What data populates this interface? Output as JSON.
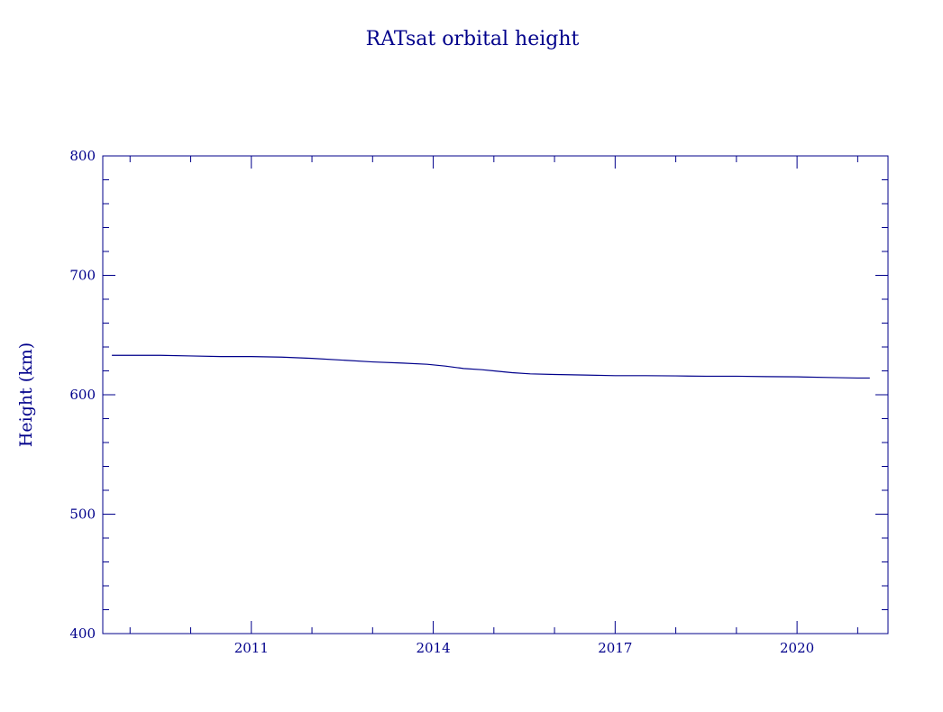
{
  "chart_data": {
    "type": "line",
    "title": "RATsat orbital height",
    "xlabel": "",
    "ylabel": "Height (km)",
    "x_ticks": [
      2011,
      2014,
      2017,
      2020
    ],
    "y_ticks": [
      400,
      500,
      600,
      700,
      800
    ],
    "xlim": [
      2008.55,
      2021.5
    ],
    "ylim": [
      400,
      800
    ],
    "grid": false,
    "legend": "none",
    "color": "#00008b",
    "series": [
      {
        "x": [
          2008.7,
          2009.5,
          2010.0,
          2010.5,
          2011.0,
          2011.5,
          2012.0,
          2012.5,
          2013.0,
          2013.5,
          2013.9,
          2014.2,
          2014.5,
          2014.8,
          2015.0,
          2015.3,
          2015.6,
          2016.0,
          2016.5,
          2017.0,
          2017.5,
          2018.0,
          2018.5,
          2019.0,
          2019.5,
          2020.0,
          2020.5,
          2021.0,
          2021.2
        ],
        "y": [
          633,
          633,
          632.5,
          632,
          632,
          631.5,
          630.5,
          629,
          627.5,
          626.5,
          625.5,
          624,
          622,
          621,
          620,
          618.5,
          617.5,
          617,
          616.5,
          616,
          616,
          615.8,
          615.5,
          615.5,
          615.2,
          615,
          614.5,
          614,
          614
        ]
      }
    ]
  }
}
